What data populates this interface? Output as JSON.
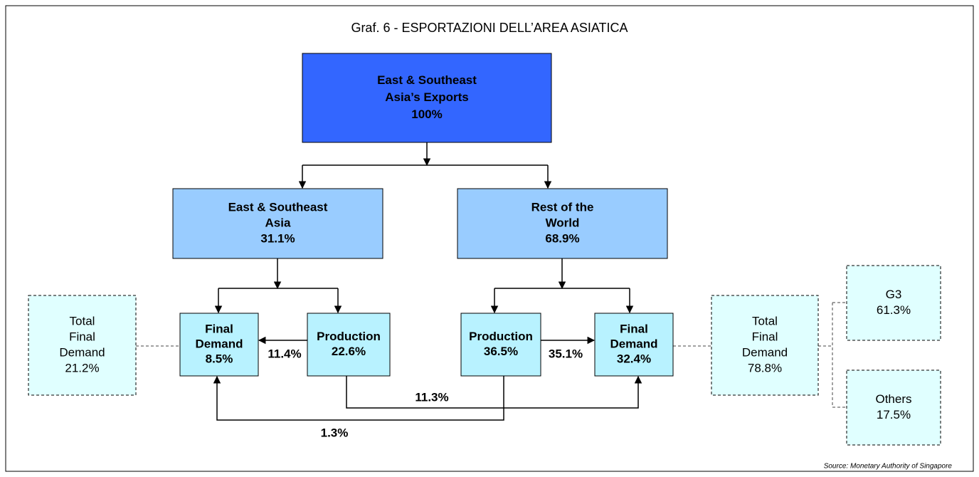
{
  "title": "Graf. 6 - ESPORTAZIONI DELL’AREA ASIATICA",
  "nodes": [
    {
      "lines": [
        "East & Southeast",
        "Asia’s Exports",
        "100%"
      ]
    },
    {
      "lines": [
        "East & Southeast",
        "Asia",
        "31.1%"
      ]
    },
    {
      "lines": [
        "Rest of the",
        "World",
        "68.9%"
      ]
    },
    {
      "lines": [
        "Final",
        "Demand",
        "8.5%"
      ]
    },
    {
      "lines": [
        "Production",
        "22.6%"
      ]
    },
    {
      "lines": [
        "Production",
        "36.5%"
      ]
    },
    {
      "lines": [
        "Final",
        "Demand",
        "32.4%"
      ]
    },
    {
      "lines": [
        "Total",
        "Final",
        "Demand",
        "21.2%"
      ]
    },
    {
      "lines": [
        "Total",
        "Final",
        "Demand",
        "78.8%"
      ]
    },
    {
      "lines": [
        "G3",
        "61.3%"
      ]
    },
    {
      "lines": [
        "Others",
        "17.5%"
      ]
    }
  ],
  "edge_labels": [
    "11.4%",
    "35.1%",
    "11.3%",
    "1.3%"
  ],
  "source": "Source: Monetary Authority of Singapore"
}
